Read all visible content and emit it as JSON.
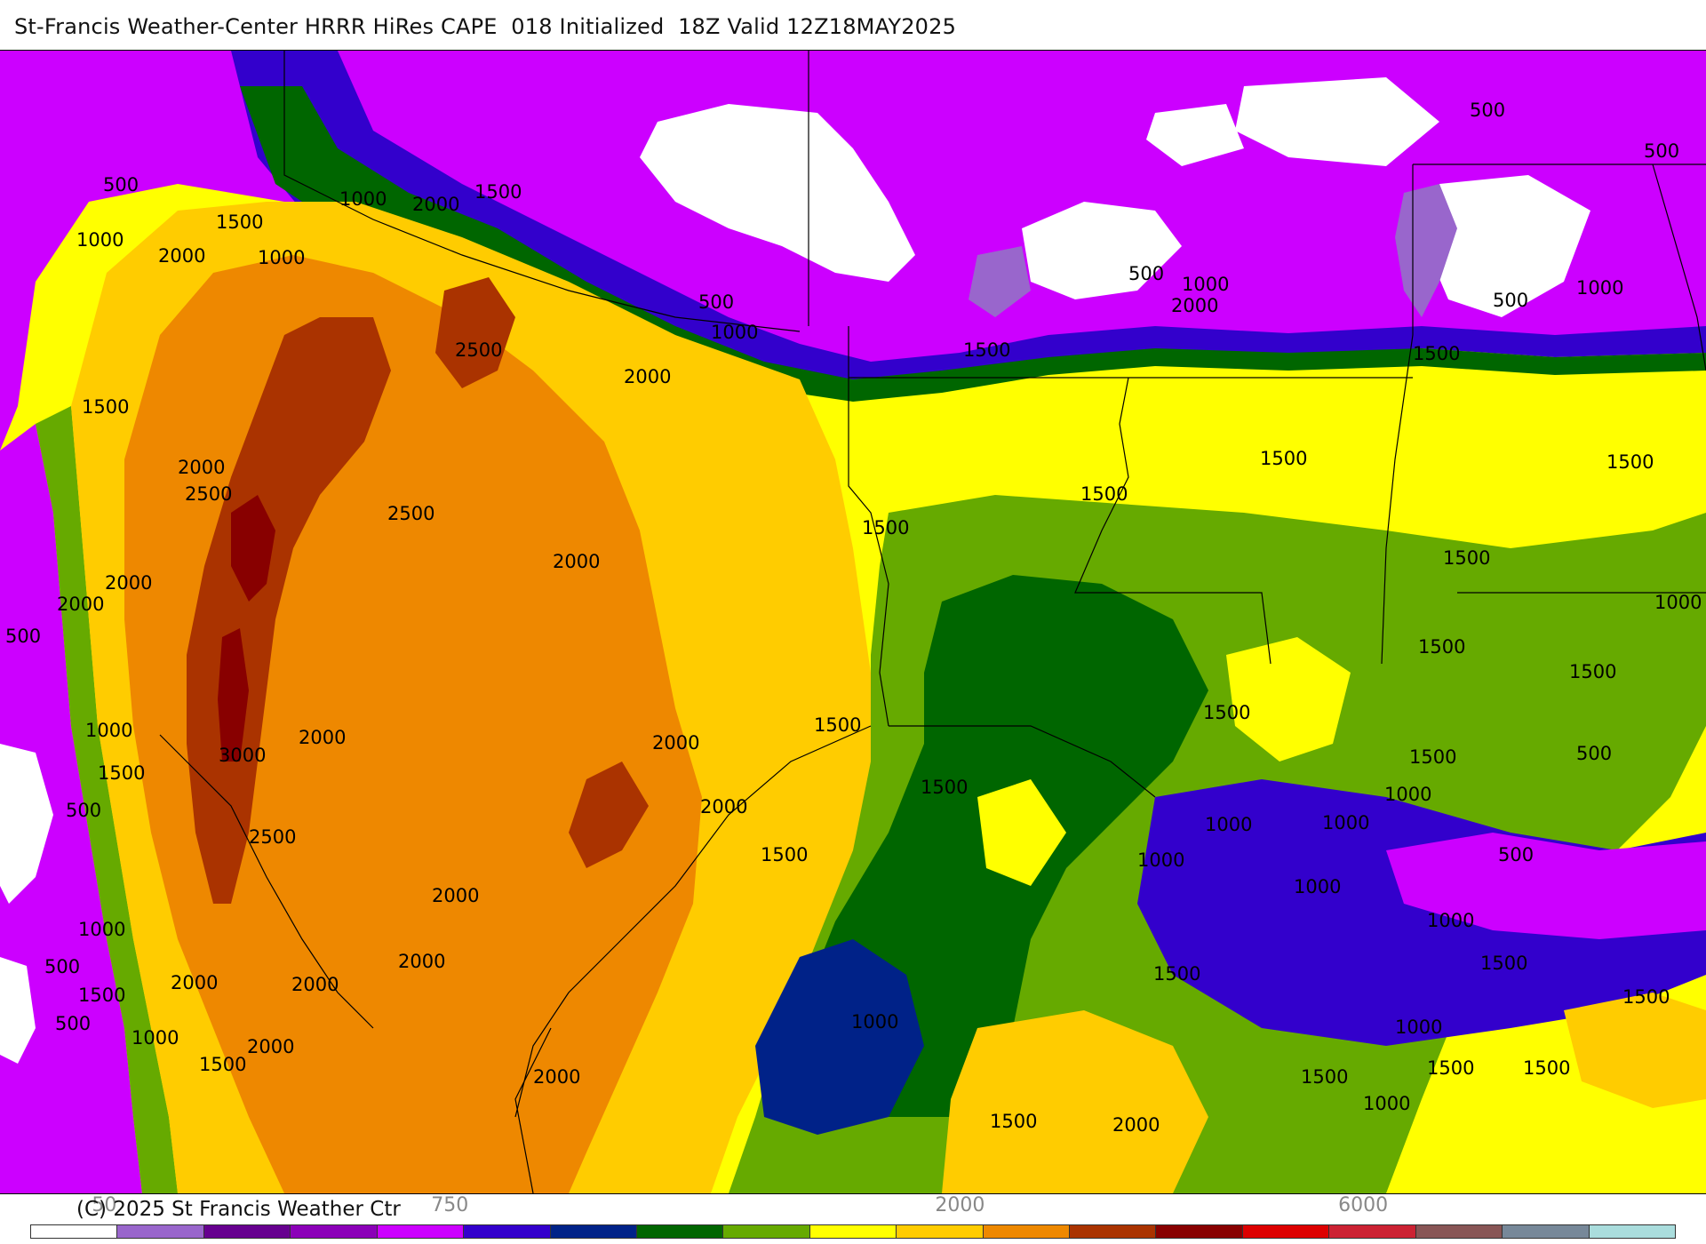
{
  "title": "St-Francis Weather-Center HRRR HiRes CAPE  018 Initialized  18Z Valid 12Z18MAY2025",
  "credit": "(C) 2025 St Francis Weather Ctr",
  "colors": {
    "white": "#ffffff",
    "lavender": "#9966cc",
    "darkpurple": "#66008f",
    "purple": "#8b00b8",
    "magenta": "#cc00ff",
    "blue": "#3300cc",
    "navy": "#002288",
    "darkgreen": "#006600",
    "green": "#66aa00",
    "yellow": "#ffff00",
    "gold": "#ffcc00",
    "orange": "#ee8800",
    "rust": "#aa3300",
    "maroon": "#880000",
    "red": "#dd0000",
    "crimson": "#cc2233",
    "brown": "#885555",
    "slate": "#778899",
    "lightblue": "#aadddd"
  },
  "colorbar": {
    "colors": [
      "#ffffff",
      "#9966cc",
      "#66008f",
      "#8b00b8",
      "#cc00ff",
      "#3300cc",
      "#002288",
      "#006600",
      "#66aa00",
      "#ffff00",
      "#ffcc00",
      "#ee8800",
      "#aa3300",
      "#880000",
      "#dd0000",
      "#cc2233",
      "#885555",
      "#778899",
      "#aadddd"
    ],
    "tick_labels": [
      "50",
      "750",
      "2000",
      "6000"
    ]
  },
  "contour_labels": [
    "500",
    "1000",
    "1500",
    "2000",
    "2500",
    "3000"
  ]
}
